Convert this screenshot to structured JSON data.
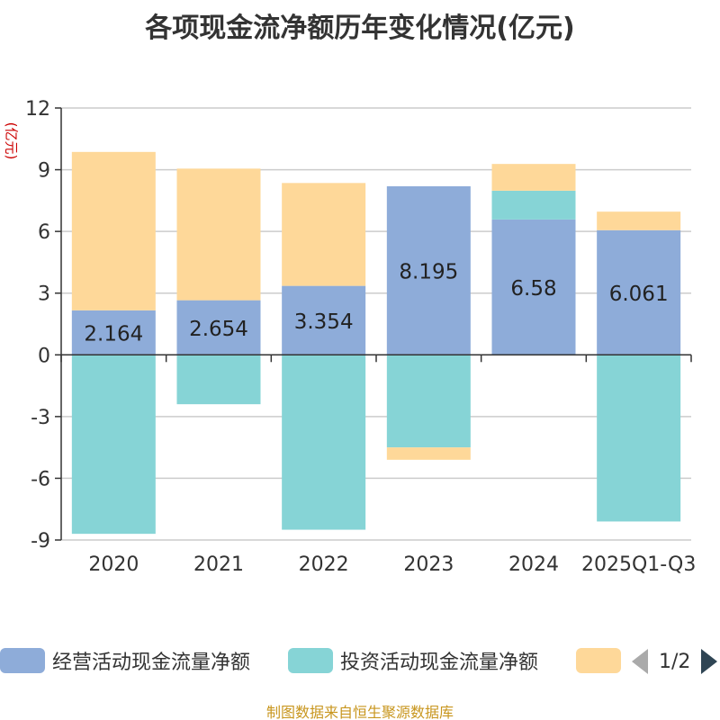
{
  "chart_data": {
    "type": "bar",
    "stacked": true,
    "title": "各项现金流净额历年变化情况(亿元)",
    "ylabel": "(亿元)",
    "ylim": [
      -9,
      12
    ],
    "yticks": [
      12,
      9,
      6,
      3,
      0,
      -3,
      -6,
      -9
    ],
    "categories": [
      "2020",
      "2021",
      "2022",
      "2023",
      "2024",
      "2025Q1-Q3"
    ],
    "series": [
      {
        "name": "经营活动现金流量净额",
        "color": "#8eacd9",
        "values": [
          2.164,
          2.654,
          3.354,
          8.195,
          6.58,
          6.061
        ],
        "labels": [
          "2.164",
          "2.654",
          "3.354",
          "8.195",
          "6.58",
          "6.061"
        ]
      },
      {
        "name": "投资活动现金流量净额",
        "color": "#86d4d6",
        "values": [
          -8.7,
          -2.4,
          -8.5,
          -4.5,
          1.4,
          -8.1
        ]
      },
      {
        "name": "",
        "color": "#fed899",
        "values": [
          7.7,
          6.4,
          5.0,
          -0.6,
          1.3,
          0.9
        ]
      }
    ],
    "legend_position": "bottom",
    "grid": true
  },
  "legend": {
    "items": [
      {
        "label": "经营活动现金流量净额",
        "color": "#8eacd9"
      },
      {
        "label": "投资活动现金流量净额",
        "color": "#86d4d6"
      },
      {
        "label": "",
        "color": "#fed899"
      }
    ],
    "pager": "1/2"
  },
  "source_text": "制图数据来自恒生聚源数据库"
}
